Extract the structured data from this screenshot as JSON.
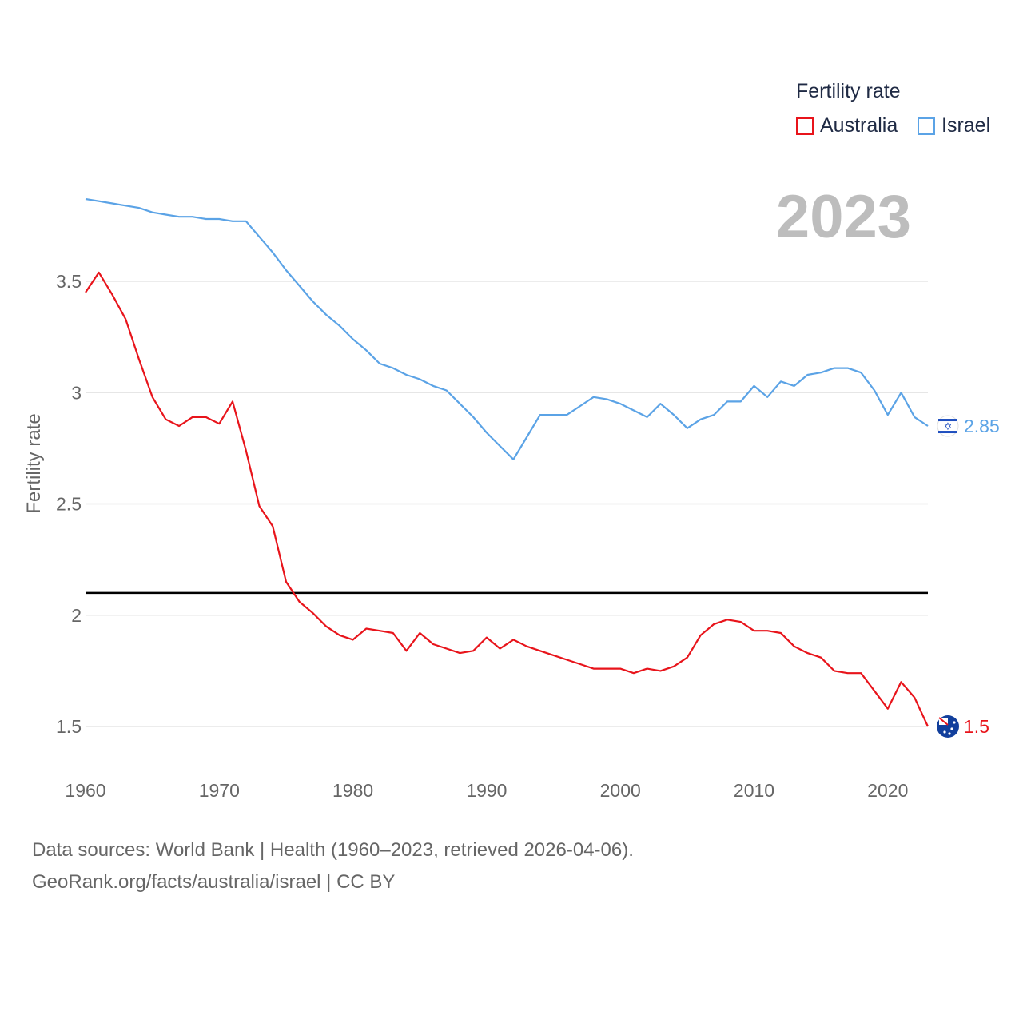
{
  "legend": {
    "title": "Fertility rate",
    "items": [
      {
        "label": "Australia",
        "color": "#e8141b"
      },
      {
        "label": "Israel",
        "color": "#5ba3e6"
      }
    ]
  },
  "year_label": "2023",
  "footer": {
    "line1": "Data sources: World Bank | Health (1960–2023, retrieved 2026-04-06).",
    "line2": "GeoRank.org/facts/australia/israel | CC BY"
  },
  "chart_data": {
    "type": "line",
    "title": "Fertility rate",
    "xlabel": "",
    "ylabel": "Fertility rate",
    "xlim": [
      1960,
      2023
    ],
    "ylim": [
      1.4,
      3.9
    ],
    "x_ticks": [
      1960,
      1970,
      1980,
      1990,
      2000,
      2010,
      2020
    ],
    "y_ticks": [
      1.5,
      2,
      2.5,
      3,
      3.5
    ],
    "y_tick_labels": [
      "1.5",
      "2",
      "2.5",
      "3",
      "3.5"
    ],
    "grid": true,
    "reference_line": {
      "y": 2.1,
      "color": "#000000"
    },
    "x": [
      1960,
      1961,
      1962,
      1963,
      1964,
      1965,
      1966,
      1967,
      1968,
      1969,
      1970,
      1971,
      1972,
      1973,
      1974,
      1975,
      1976,
      1977,
      1978,
      1979,
      1980,
      1981,
      1982,
      1983,
      1984,
      1985,
      1986,
      1987,
      1988,
      1989,
      1990,
      1991,
      1992,
      1993,
      1994,
      1995,
      1996,
      1997,
      1998,
      1999,
      2000,
      2001,
      2002,
      2003,
      2004,
      2005,
      2006,
      2007,
      2008,
      2009,
      2010,
      2011,
      2012,
      2013,
      2014,
      2015,
      2016,
      2017,
      2018,
      2019,
      2020,
      2021,
      2022,
      2023
    ],
    "series": [
      {
        "name": "Australia",
        "color": "#e8141b",
        "end_label": "1.5",
        "values": [
          3.45,
          3.54,
          3.44,
          3.33,
          3.15,
          2.98,
          2.88,
          2.85,
          2.89,
          2.89,
          2.86,
          2.96,
          2.74,
          2.49,
          2.4,
          2.15,
          2.06,
          2.01,
          1.95,
          1.91,
          1.89,
          1.94,
          1.93,
          1.92,
          1.84,
          1.92,
          1.87,
          1.85,
          1.83,
          1.84,
          1.9,
          1.85,
          1.89,
          1.86,
          1.84,
          1.82,
          1.8,
          1.78,
          1.76,
          1.76,
          1.76,
          1.74,
          1.76,
          1.75,
          1.77,
          1.81,
          1.91,
          1.96,
          1.98,
          1.97,
          1.93,
          1.93,
          1.92,
          1.86,
          1.83,
          1.81,
          1.75,
          1.74,
          1.74,
          1.66,
          1.58,
          1.7,
          1.63,
          1.5
        ]
      },
      {
        "name": "Israel",
        "color": "#5ba3e6",
        "end_label": "2.85",
        "values": [
          3.87,
          3.86,
          3.85,
          3.84,
          3.83,
          3.81,
          3.8,
          3.79,
          3.79,
          3.78,
          3.78,
          3.77,
          3.77,
          3.7,
          3.63,
          3.55,
          3.48,
          3.41,
          3.35,
          3.3,
          3.24,
          3.19,
          3.13,
          3.11,
          3.08,
          3.06,
          3.03,
          3.01,
          2.95,
          2.89,
          2.82,
          2.76,
          2.7,
          2.8,
          2.9,
          2.9,
          2.9,
          2.94,
          2.98,
          2.97,
          2.95,
          2.92,
          2.89,
          2.95,
          2.9,
          2.84,
          2.88,
          2.9,
          2.96,
          2.96,
          3.03,
          2.98,
          3.05,
          3.03,
          3.08,
          3.09,
          3.11,
          3.11,
          3.09,
          3.01,
          2.9,
          3.0,
          2.89,
          2.85
        ]
      }
    ]
  }
}
